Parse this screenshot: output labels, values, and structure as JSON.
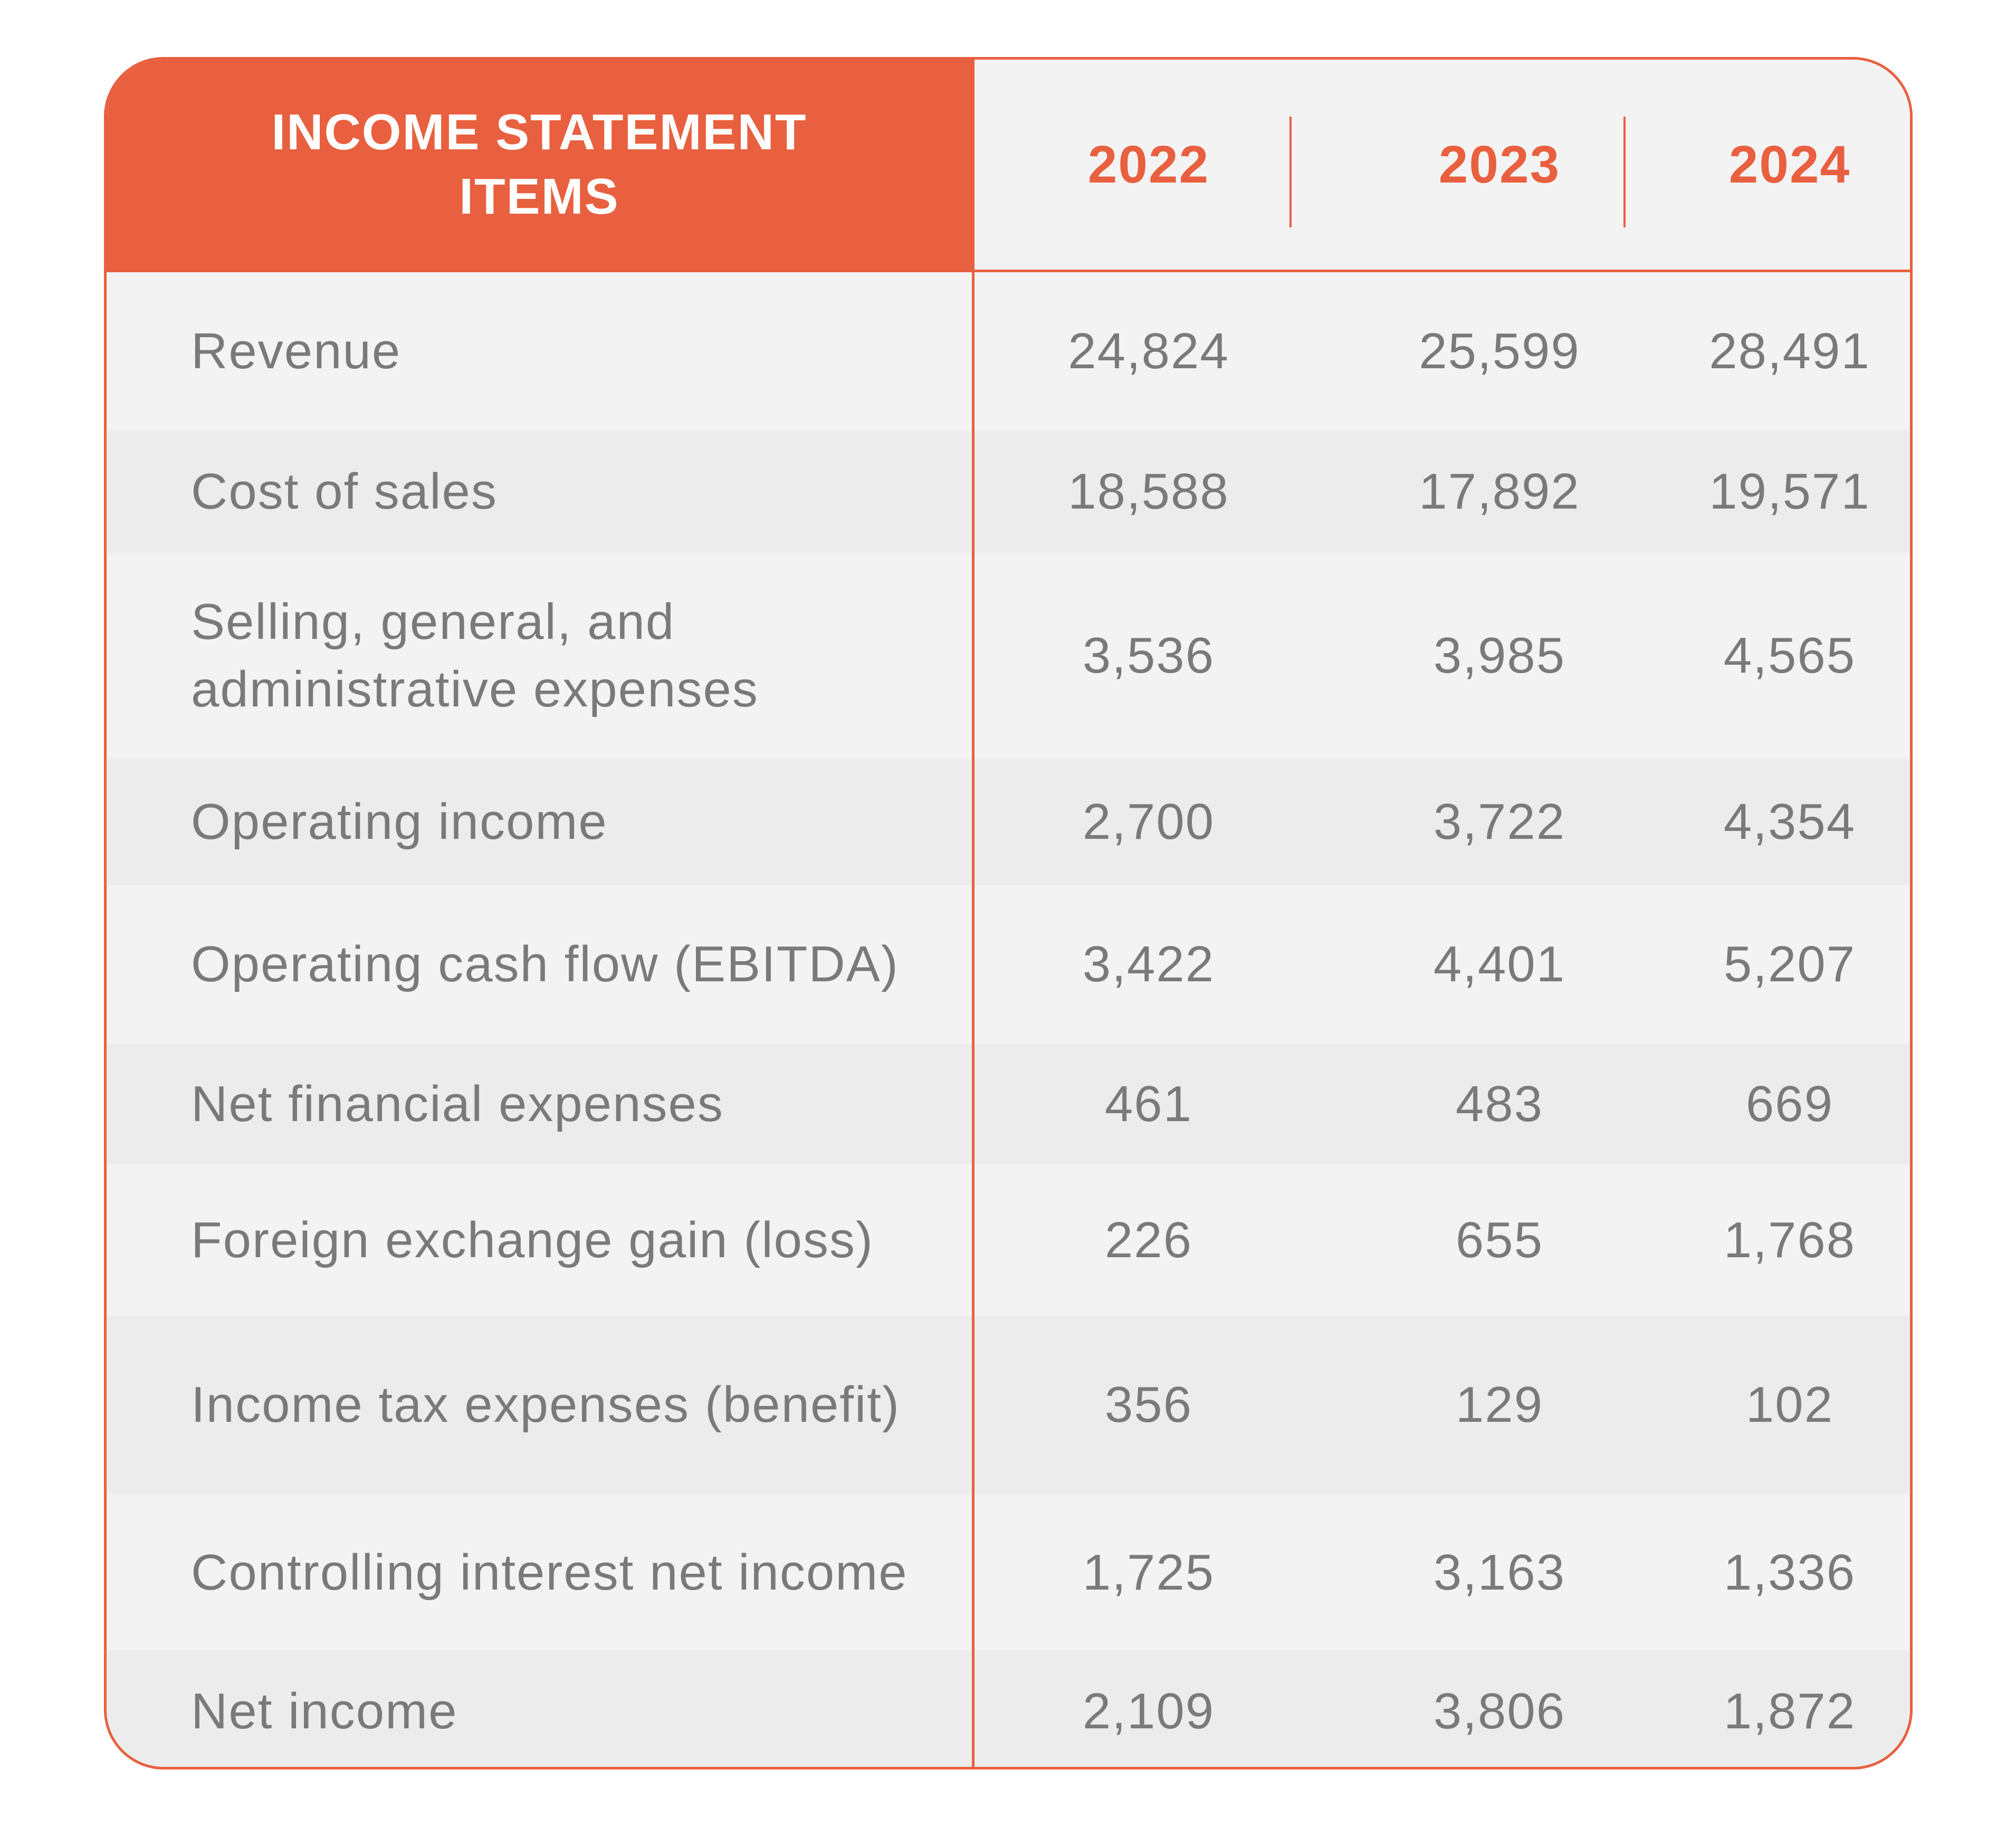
{
  "table": {
    "header_label": "INCOME STATEMENT ITEMS",
    "years": [
      "2022",
      "2023",
      "2024"
    ],
    "rows": [
      {
        "label": "Revenue",
        "values": [
          "24,824",
          "25,599",
          "28,491"
        ]
      },
      {
        "label": "Cost of sales",
        "values": [
          "18,588",
          "17,892",
          "19,571"
        ]
      },
      {
        "label": "Selling, general, and administrative expenses",
        "values": [
          "3,536",
          "3,985",
          "4,565"
        ]
      },
      {
        "label": "Operating income",
        "values": [
          "2,700",
          "3,722",
          "4,354"
        ]
      },
      {
        "label": "Operating cash flow (EBITDA)",
        "values": [
          "3,422",
          "4,401",
          "5,207"
        ]
      },
      {
        "label": "Net financial expenses",
        "values": [
          "461",
          "483",
          "669"
        ]
      },
      {
        "label": "Foreign exchange gain (loss)",
        "values": [
          "226",
          "655",
          "1,768"
        ]
      },
      {
        "label": "Income tax expenses (benefit)",
        "values": [
          "356",
          "129",
          "102"
        ]
      },
      {
        "label": "Controlling interest net income",
        "values": [
          "1,725",
          "3,163",
          "1,336"
        ]
      },
      {
        "label": "Net income",
        "values": [
          "2,109",
          "3,806",
          "1,872"
        ]
      }
    ]
  },
  "colors": {
    "accent": "#e8603f",
    "row_light": "#f3f3f3",
    "row_shaded": "#ececec",
    "text": "#7a7a7a"
  }
}
